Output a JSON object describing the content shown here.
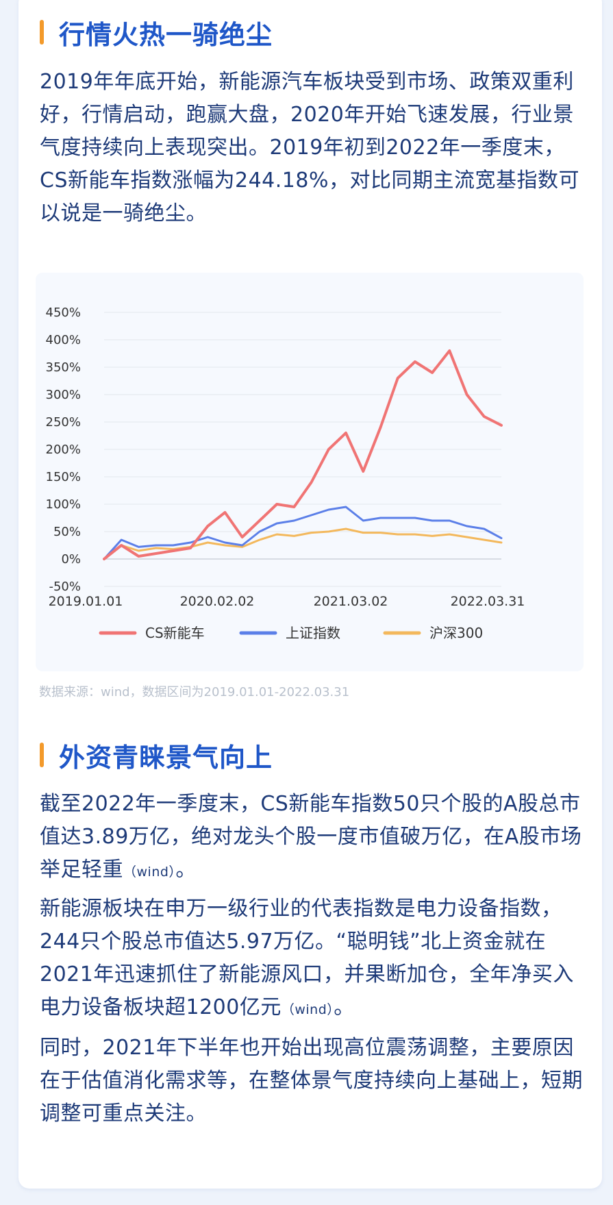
{
  "section1": {
    "title": "行情火热一骑绝尘",
    "paragraph": "2019年年底开始，新能源汽车板块受到市场、政策双重利好，行情启动，跑赢大盘，2020年开始飞速发展，行业景气度持续向上表现突出。2019年初到2022年一季度末，CS新能车指数涨幅为244.18%，对比同期主流宽基指数可以说是一骑绝尘。"
  },
  "chart_data": {
    "type": "line",
    "title": "",
    "xlabel": "",
    "ylabel": "",
    "ylim": [
      -50,
      450
    ],
    "y_ticks": [
      "450%",
      "400%",
      "350%",
      "300%",
      "250%",
      "200%",
      "150%",
      "100%",
      "50%",
      "0%",
      "-50%"
    ],
    "x_ticks": [
      "2019.01.01",
      "2020.02.02",
      "2021.03.02",
      "2022.03.31"
    ],
    "x": [
      "2019.01",
      "2019.03",
      "2019.05",
      "2019.07",
      "2019.09",
      "2019.11",
      "2020.01",
      "2020.02",
      "2020.03",
      "2020.05",
      "2020.07",
      "2020.09",
      "2020.11",
      "2021.01",
      "2021.02",
      "2021.03",
      "2021.05",
      "2021.07",
      "2021.08",
      "2021.09",
      "2021.11",
      "2022.01",
      "2022.02",
      "2022.03"
    ],
    "series": [
      {
        "name": "CS新能车",
        "color": "#f07474",
        "values": [
          0,
          25,
          5,
          10,
          15,
          20,
          60,
          85,
          40,
          70,
          100,
          95,
          140,
          200,
          230,
          160,
          240,
          330,
          360,
          340,
          380,
          300,
          260,
          244
        ]
      },
      {
        "name": "上证指数",
        "color": "#5b7fe8",
        "values": [
          0,
          35,
          22,
          25,
          25,
          30,
          40,
          30,
          25,
          50,
          65,
          70,
          80,
          90,
          95,
          70,
          75,
          75,
          75,
          70,
          70,
          60,
          55,
          38
        ]
      },
      {
        "name": "沪深300",
        "color": "#f3b85c",
        "values": [
          0,
          25,
          15,
          20,
          18,
          22,
          30,
          25,
          22,
          35,
          45,
          42,
          48,
          50,
          55,
          48,
          48,
          45,
          45,
          42,
          45,
          40,
          35,
          30
        ]
      }
    ],
    "legend_position": "bottom",
    "grid": true
  },
  "source_note": "数据来源：wind，数据区间为2019.01.01-2022.03.31",
  "section2": {
    "title": "外资青睐景气向上",
    "p1_text": "截至2022年一季度末，CS新能车指数50只个股的A股总市值达3.89万亿，绝对龙头个股一度市值破万亿，在A股市场举足轻重",
    "p1_src": "（wind）",
    "p1_end": "。",
    "p2_text": "新能源板块在申万一级行业的代表指数是电力设备指数，244只个股总市值达5.97万亿。“聪明钱”北上资金就在2021年迅速抓住了新能源风口，并果断加仓，全年净买入电力设备板块超1200亿元",
    "p2_src": "（wind）",
    "p2_end": "。",
    "p3": "同时，2021年下半年也开始出现高位震荡调整，主要原因在于估值消化需求等，在整体景气度持续向上基础上，短期调整可重点关注。"
  }
}
